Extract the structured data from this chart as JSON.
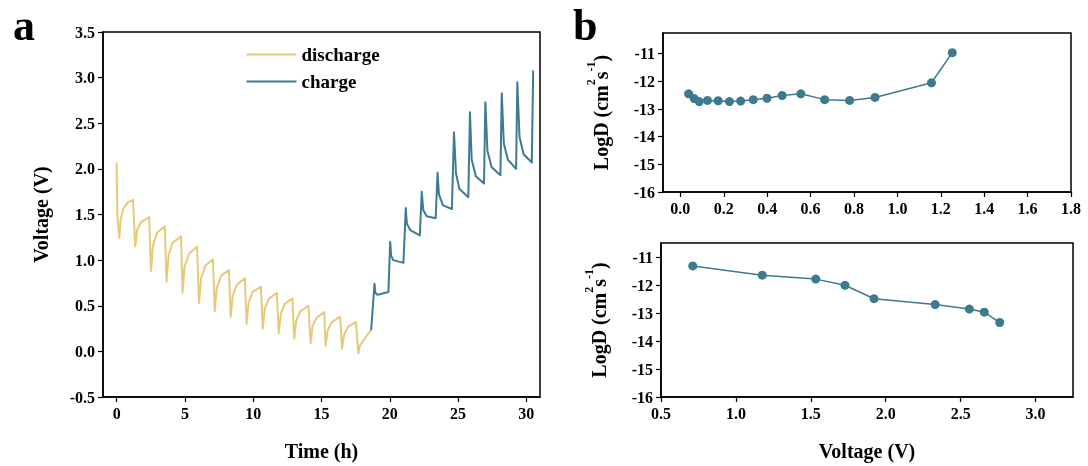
{
  "chart_data": [
    {
      "type": "line",
      "title": "a",
      "xlabel": "Time (h)",
      "ylabel": "Voltage (V)",
      "xlim": [
        -1,
        31
      ],
      "ylim": [
        -0.5,
        3.5
      ],
      "xticks": [
        0,
        5,
        10,
        15,
        20,
        25,
        30
      ],
      "yticks": [
        -0.5,
        {
          "value": 0,
          "label": "0.0"
        },
        0.5,
        {
          "value": 1,
          "label": "1.0"
        },
        1.5,
        {
          "value": 2,
          "label": "2.0"
        },
        2.5,
        {
          "value": 3,
          "label": "3.0"
        },
        3.5
      ],
      "grid": false,
      "legend": "top",
      "marker": "none",
      "line_style": "solid",
      "series": [
        {
          "name": "discharge",
          "color": "#e8c97a",
          "x": [
            0,
            0.05,
            0.19,
            0.3,
            0.5,
            0.8,
            1.2,
            1.36,
            1.5,
            1.8,
            2.38,
            2.51,
            2.65,
            2.95,
            3.53,
            3.65,
            3.8,
            4.1,
            4.72,
            4.82,
            4.97,
            5.3,
            5.89,
            6.03,
            6.18,
            6.5,
            7.05,
            7.18,
            7.33,
            7.65,
            8.22,
            8.35,
            8.5,
            8.8,
            9.39,
            9.51,
            9.66,
            9.95,
            10.56,
            10.7,
            10.85,
            11.15,
            11.73,
            11.87,
            12.02,
            12.3,
            12.87,
            13.0,
            13.15,
            13.45,
            14.04,
            14.2,
            14.35,
            14.65,
            15.2,
            15.3,
            15.45,
            15.75,
            16.37,
            16.5,
            16.65,
            16.95,
            17.52,
            17.7,
            17.8,
            18.64
          ],
          "values": [
            2.06,
            1.5,
            1.24,
            1.45,
            1.57,
            1.63,
            1.66,
            1.15,
            1.33,
            1.42,
            1.47,
            0.88,
            1.15,
            1.3,
            1.37,
            0.76,
            1.05,
            1.19,
            1.26,
            0.64,
            0.93,
            1.07,
            1.15,
            0.53,
            0.8,
            0.94,
            1.01,
            0.44,
            0.69,
            0.83,
            0.89,
            0.38,
            0.61,
            0.73,
            0.8,
            0.3,
            0.53,
            0.65,
            0.71,
            0.25,
            0.47,
            0.58,
            0.64,
            0.2,
            0.41,
            0.52,
            0.58,
            0.14,
            0.34,
            0.44,
            0.5,
            0.09,
            0.28,
            0.37,
            0.43,
            0.06,
            0.23,
            0.32,
            0.38,
            0.03,
            0.18,
            0.27,
            0.32,
            -0.02,
            0.06,
            0.24
          ]
        },
        {
          "name": "charge",
          "color": "#3e7a91",
          "x": [
            18.64,
            18.88,
            18.95,
            19.1,
            19.9,
            20.03,
            20.1,
            20.25,
            21.0,
            21.17,
            21.25,
            21.5,
            22.2,
            22.34,
            22.45,
            22.7,
            23.36,
            23.5,
            23.6,
            23.9,
            24.55,
            24.7,
            24.85,
            25.1,
            25.75,
            25.87,
            26.0,
            26.3,
            26.9,
            27.0,
            27.15,
            27.45,
            28.1,
            28.2,
            28.35,
            28.65,
            29.25,
            29.34,
            29.5,
            29.8,
            30.4,
            30.5
          ],
          "values": [
            0.24,
            0.74,
            0.64,
            0.62,
            0.65,
            1.2,
            1.05,
            1.0,
            0.97,
            1.57,
            1.4,
            1.33,
            1.27,
            1.75,
            1.55,
            1.48,
            1.46,
            1.96,
            1.72,
            1.6,
            1.56,
            2.4,
            1.95,
            1.78,
            1.69,
            2.62,
            2.1,
            1.92,
            1.84,
            2.73,
            2.2,
            2.02,
            1.93,
            2.83,
            2.28,
            2.1,
            2.0,
            2.95,
            2.35,
            2.16,
            2.07,
            3.07
          ]
        }
      ]
    },
    {
      "type": "line",
      "title": "b",
      "ylabel": "LogD (cm$^{2}$s$^{-1}$)",
      "xlim": [
        -0.08,
        1.8
      ],
      "ylim": [
        -16,
        -10.25
      ],
      "xticks": [
        {
          "value": 0,
          "label": "0.0"
        },
        0.2,
        0.4,
        0.6,
        0.8,
        {
          "value": 1,
          "label": "1.0"
        },
        1.2,
        1.4,
        1.6,
        1.8
      ],
      "yticks": [
        -16,
        -15,
        -14,
        -13,
        -12,
        -11
      ],
      "grid": false,
      "legend": false,
      "marker": "circle",
      "line_style": "solid",
      "series": [
        {
          "color": "#3d7a8e",
          "x": [
            0.038,
            0.064,
            0.087,
            0.125,
            0.174,
            0.226,
            0.278,
            0.336,
            0.399,
            0.469,
            0.555,
            0.665,
            0.78,
            0.897,
            1.157,
            1.253
          ],
          "values": [
            -12.45,
            -12.62,
            -12.73,
            -12.69,
            -12.7,
            -12.73,
            -12.71,
            -12.66,
            -12.61,
            -12.51,
            -12.45,
            -12.66,
            -12.69,
            -12.58,
            -12.05,
            -10.96
          ]
        }
      ]
    },
    {
      "type": "line",
      "xlabel": "Voltage (V)",
      "ylabel": "LogD (cm$^{2}$s$^{-1}$)",
      "xlim": [
        0.5,
        3.25
      ],
      "ylim": [
        -16,
        -10.5
      ],
      "xticks": [
        0.5,
        {
          "value": 1,
          "label": "1.0"
        },
        1.5,
        {
          "value": 2,
          "label": "2.0"
        },
        2.5,
        {
          "value": 3,
          "label": "3.0"
        }
      ],
      "yticks": [
        -16,
        -15,
        -14,
        -13,
        -12,
        -11
      ],
      "grid": false,
      "legend": false,
      "marker": "circle",
      "line_style": "solid",
      "series": [
        {
          "color": "#3d7a8e",
          "x": [
            0.712,
            1.176,
            1.533,
            1.728,
            1.922,
            2.33,
            2.558,
            2.658,
            2.761
          ],
          "values": [
            -11.32,
            -11.65,
            -11.79,
            -12.01,
            -12.49,
            -12.7,
            -12.86,
            -12.97,
            -13.34
          ]
        }
      ]
    }
  ]
}
